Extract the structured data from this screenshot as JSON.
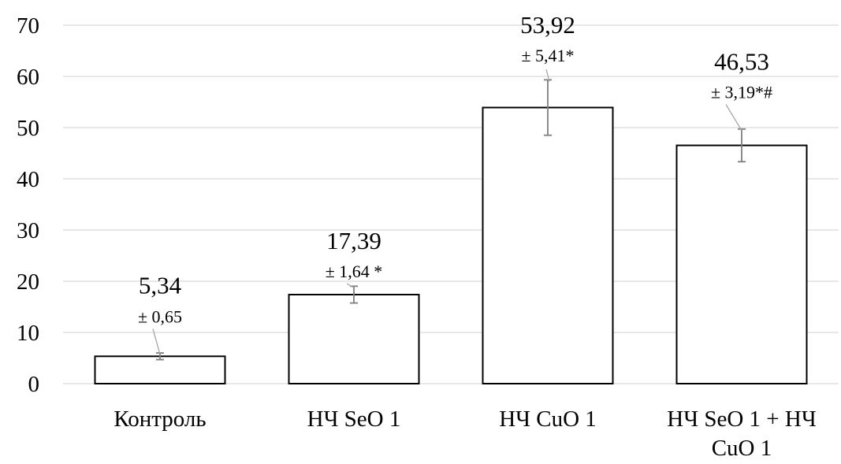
{
  "chart_data": {
    "type": "bar",
    "title": "",
    "xlabel": "",
    "ylabel": "",
    "ylim": [
      0,
      70
    ],
    "yticks": [
      0,
      10,
      20,
      30,
      40,
      50,
      60,
      70
    ],
    "grid": true,
    "categories": [
      [
        "Контроль"
      ],
      [
        "НЧ SeO 1"
      ],
      [
        "НЧ CuO 1"
      ],
      [
        "НЧ SeO 1 + НЧ",
        "CuO 1"
      ]
    ],
    "values": [
      5.34,
      17.39,
      53.92,
      46.53
    ],
    "errors": [
      0.65,
      1.64,
      5.41,
      3.19
    ],
    "value_labels": [
      "5,34",
      "17,39",
      "53,92",
      "46,53"
    ],
    "error_labels": [
      "± 0,65",
      "± 1,64 *",
      "± 5,41*",
      "± 3,19*#"
    ],
    "colors": {
      "bar_fill": "#ffffff",
      "bar_stroke": "#000000",
      "grid": "#d9d9d9",
      "error_bar": "#7f7f7f"
    }
  }
}
